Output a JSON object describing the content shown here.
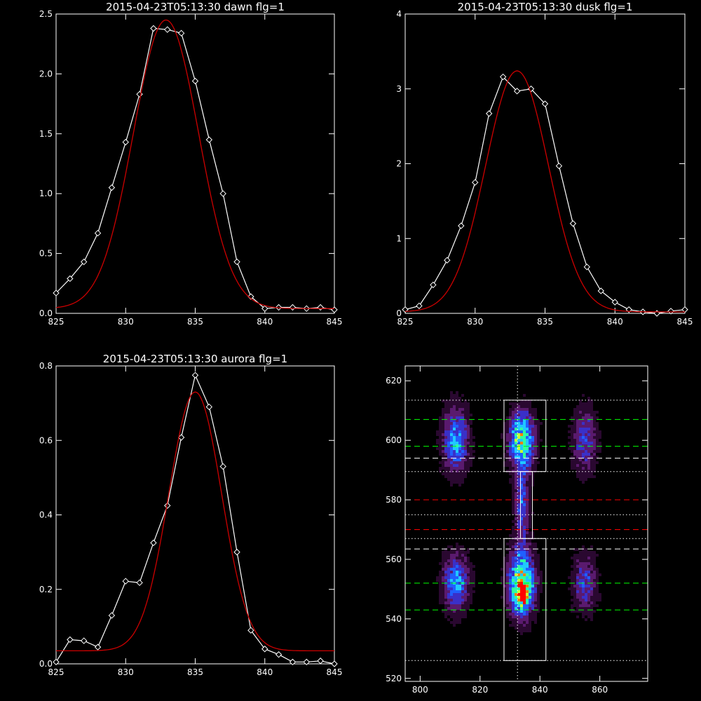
{
  "chart_data": [
    {
      "id": "dawn",
      "type": "line",
      "title": "2015-04-23T05:13:30 dawn flg=1",
      "xlim": [
        825,
        845
      ],
      "ylim": [
        0,
        2.5
      ],
      "xticks": [
        825,
        830,
        835,
        840,
        845
      ],
      "yticks": [
        0.0,
        0.5,
        1.0,
        1.5,
        2.0,
        2.5
      ],
      "ytick_labels": [
        "0.0",
        "0.5",
        "1.0",
        "1.5",
        "2.0",
        "2.5"
      ],
      "series": [
        {
          "kind": "measured",
          "color": "#ffffff",
          "marker": "diamond",
          "x": [
            825,
            826,
            827,
            828,
            829,
            830,
            831,
            832,
            833,
            834,
            835,
            836,
            837,
            838,
            839,
            840,
            841,
            842,
            843,
            844,
            845
          ],
          "y": [
            0.17,
            0.29,
            0.43,
            0.67,
            1.05,
            1.43,
            1.83,
            2.38,
            2.37,
            2.34,
            1.94,
            1.45,
            1.0,
            0.43,
            0.14,
            0.04,
            0.05,
            0.05,
            0.04,
            0.05,
            0.03
          ]
        },
        {
          "kind": "fit",
          "color": "#cc0000",
          "gauss": {
            "amp": 2.41,
            "center": 832.9,
            "sigma": 2.35,
            "offset": 0.04
          }
        }
      ]
    },
    {
      "id": "dusk",
      "type": "line",
      "title": "2015-04-23T05:13:30 dusk flg=1",
      "xlim": [
        825,
        845
      ],
      "ylim": [
        0,
        4
      ],
      "xticks": [
        825,
        830,
        835,
        840,
        845
      ],
      "yticks": [
        0,
        1,
        2,
        3,
        4
      ],
      "ytick_labels": [
        "0",
        "1",
        "2",
        "3",
        "4"
      ],
      "series": [
        {
          "kind": "measured",
          "color": "#ffffff",
          "marker": "diamond",
          "x": [
            825,
            826,
            827,
            828,
            829,
            830,
            831,
            832,
            833,
            834,
            835,
            836,
            837,
            838,
            839,
            840,
            841,
            842,
            843,
            844,
            845
          ],
          "y": [
            0.05,
            0.1,
            0.38,
            0.71,
            1.17,
            1.75,
            2.67,
            3.16,
            2.97,
            3.0,
            2.8,
            1.97,
            1.2,
            0.62,
            0.3,
            0.15,
            0.05,
            0.02,
            0.0,
            0.03,
            0.05
          ]
        },
        {
          "kind": "fit",
          "color": "#cc0000",
          "gauss": {
            "amp": 3.22,
            "center": 833.0,
            "sigma": 2.25,
            "offset": 0.02
          }
        }
      ]
    },
    {
      "id": "aurora",
      "type": "line",
      "title": "2015-04-23T05:13:30 aurora flg=1",
      "xlim": [
        825,
        845
      ],
      "ylim": [
        0,
        0.8
      ],
      "xticks": [
        825,
        830,
        835,
        840,
        845
      ],
      "yticks": [
        0.0,
        0.2,
        0.4,
        0.6,
        0.8
      ],
      "ytick_labels": [
        "0.0",
        "0.2",
        "0.4",
        "0.6",
        "0.8"
      ],
      "series": [
        {
          "kind": "measured",
          "color": "#ffffff",
          "marker": "diamond",
          "x": [
            825,
            826,
            827,
            828,
            829,
            830,
            831,
            832,
            833,
            834,
            835,
            836,
            837,
            838,
            839,
            840,
            841,
            842,
            843,
            844,
            845
          ],
          "y": [
            0.005,
            0.065,
            0.062,
            0.045,
            0.13,
            0.222,
            0.218,
            0.325,
            0.425,
            0.608,
            0.775,
            0.69,
            0.53,
            0.3,
            0.09,
            0.04,
            0.025,
            0.005,
            0.005,
            0.008,
            0.0
          ]
        },
        {
          "kind": "fit",
          "color": "#cc0000",
          "gauss": {
            "amp": 0.695,
            "center": 835.0,
            "sigma": 1.9,
            "offset": 0.035
          }
        }
      ]
    },
    {
      "id": "spectrogram",
      "type": "heatmap",
      "xlim": [
        795,
        876
      ],
      "ylim": [
        519,
        625
      ],
      "xticks": [
        800,
        820,
        840,
        860
      ],
      "yticks": [
        520,
        540,
        560,
        580,
        600,
        620
      ],
      "colormap": [
        "#000000",
        "#2a0830",
        "#5a1a6e",
        "#3a30c8",
        "#2060ff",
        "#20c8ff",
        "#30ffa0",
        "#c8ff30",
        "#ff8000",
        "#ff0000"
      ],
      "blobs": [
        {
          "x": 812,
          "y": 600,
          "sx": 3.2,
          "sy": 8,
          "amp": 0.55
        },
        {
          "x": 812,
          "y": 552,
          "sx": 3.2,
          "sy": 7,
          "amp": 0.55
        },
        {
          "x": 834,
          "y": 600,
          "sx": 3.0,
          "sy": 7,
          "amp": 0.8
        },
        {
          "x": 834,
          "y": 552,
          "sx": 3.2,
          "sy": 8,
          "amp": 0.85
        },
        {
          "x": 834,
          "y": 548,
          "sx": 1.6,
          "sy": 2.5,
          "amp": 0.45
        },
        {
          "x": 834,
          "y": 578,
          "sx": 1.8,
          "sy": 8,
          "amp": 0.45
        },
        {
          "x": 855,
          "y": 600,
          "sx": 3.0,
          "sy": 8,
          "amp": 0.4
        },
        {
          "x": 855,
          "y": 552,
          "sx": 3.0,
          "sy": 7,
          "amp": 0.4
        }
      ],
      "vline": {
        "x": 832.5,
        "color": "#ffffff",
        "style": "dotted"
      },
      "boxes": [
        {
          "x0": 828,
          "x1": 842,
          "y0": 589.5,
          "y1": 613.5,
          "color": "#ffffff"
        },
        {
          "x0": 828,
          "x1": 842,
          "y0": 526,
          "y1": 567,
          "color": "#ffffff"
        },
        {
          "x0": 833.5,
          "x1": 837.5,
          "y0": 567,
          "y1": 589.5,
          "color": "#ffffff"
        }
      ],
      "hlines": [
        {
          "y": 613.5,
          "color": "#ffffff",
          "style": "dotted"
        },
        {
          "y": 607,
          "color": "#00ff00",
          "style": "dashed"
        },
        {
          "y": 598,
          "color": "#00ff00",
          "style": "dashed"
        },
        {
          "y": 594,
          "color": "#ffffff",
          "style": "dashed"
        },
        {
          "y": 589.5,
          "color": "#ffffff",
          "style": "dotted"
        },
        {
          "y": 580,
          "color": "#ff0000",
          "style": "dashed"
        },
        {
          "y": 575,
          "color": "#ffffff",
          "style": "dotted"
        },
        {
          "y": 570,
          "color": "#ff0000",
          "style": "dashed"
        },
        {
          "y": 567,
          "color": "#ffffff",
          "style": "dotted"
        },
        {
          "y": 563.5,
          "color": "#ffffff",
          "style": "dashed"
        },
        {
          "y": 552,
          "color": "#00ff00",
          "style": "dashed"
        },
        {
          "y": 543,
          "color": "#00ff00",
          "style": "dashed"
        },
        {
          "y": 526,
          "color": "#ffffff",
          "style": "dotted"
        }
      ]
    }
  ]
}
